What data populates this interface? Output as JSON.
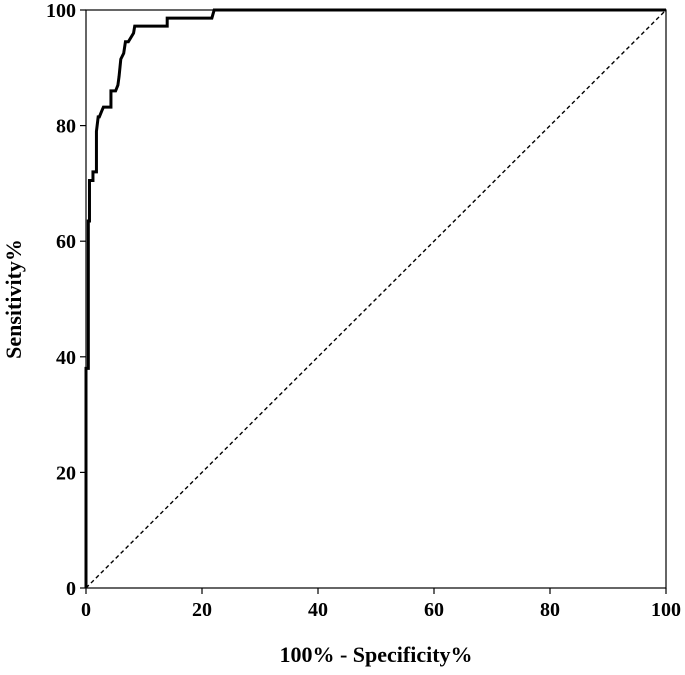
{
  "chart_data": {
    "type": "line",
    "title": "",
    "xlabel": "100% - Specificity%",
    "ylabel": "Sensitivity%",
    "xlim": [
      0,
      100
    ],
    "ylim": [
      0,
      100
    ],
    "xticks": [
      0,
      20,
      40,
      60,
      80,
      100
    ],
    "yticks": [
      0,
      20,
      40,
      60,
      80,
      100
    ],
    "grid": false,
    "legend": "none",
    "series": [
      {
        "style": "solid",
        "color": "#000000",
        "x": [
          0,
          0,
          0.4,
          0.4,
          0.6,
          0.6,
          1.2,
          1.2,
          1.8,
          1.8,
          2.1,
          2.3,
          2.7,
          3.0,
          4.3,
          4.3,
          5.1,
          5.5,
          5.7,
          6.0,
          6.5,
          6.8,
          7.0,
          7.3,
          8.2,
          8.4,
          9.0,
          14.0,
          14.0,
          21.7,
          22.1,
          100
        ],
        "y": [
          0,
          38.0,
          38.0,
          63.5,
          63.5,
          70.5,
          70.5,
          72.0,
          72.0,
          79.0,
          81.5,
          81.5,
          82.5,
          83.2,
          83.2,
          86.0,
          86.0,
          87.0,
          88.5,
          91.5,
          92.5,
          94.5,
          94.5,
          94.5,
          96.0,
          97.2,
          97.2,
          97.2,
          98.6,
          98.6,
          100,
          100
        ]
      },
      {
        "style": "dashed",
        "color": "#000000",
        "x": [
          0,
          100
        ],
        "y": [
          0,
          100
        ]
      }
    ]
  }
}
